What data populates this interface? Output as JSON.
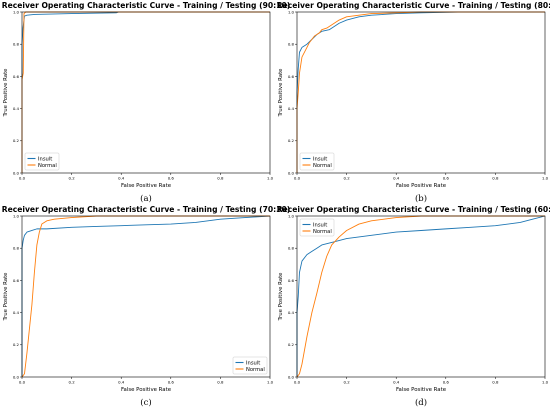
{
  "colors": {
    "insult": "#1f77b4",
    "normal": "#ff7f0e",
    "axis": "#000000",
    "legend_border": "#cccccc"
  },
  "ticks": [
    "0.0",
    "0.2",
    "0.4",
    "0.6",
    "0.8",
    "1.0"
  ],
  "chart_data": [
    {
      "type": "line",
      "sub_label": "(a)",
      "title": "Receiver Operating Characteristic Curve - Training / Testing (90:10)",
      "xlabel": "False Positive Rate",
      "ylabel": "True Positive Rate",
      "xlim": [
        0,
        1
      ],
      "ylim": [
        0,
        1
      ],
      "legend_position": "lower left",
      "series": [
        {
          "name": "Insult",
          "color": "#1f77b4",
          "points": [
            [
              0,
              0
            ],
            [
              0,
              0.8
            ],
            [
              0.004,
              0.9
            ],
            [
              0.01,
              0.975
            ],
            [
              0.02,
              0.98
            ],
            [
              0.05,
              0.985
            ],
            [
              0.2,
              0.99
            ],
            [
              0.38,
              0.995
            ],
            [
              0.39,
              1.0
            ],
            [
              1,
              1.0
            ]
          ]
        },
        {
          "name": "Normal",
          "color": "#ff7f0e",
          "points": [
            [
              0,
              0
            ],
            [
              0,
              0.58
            ],
            [
              0.005,
              0.62
            ],
            [
              0.008,
              0.99
            ],
            [
              0.015,
              1.0
            ],
            [
              1,
              1.0
            ]
          ]
        }
      ]
    },
    {
      "type": "line",
      "sub_label": "(b)",
      "title": "Receiver Operating Characteristic Curve - Training / Testing (80:20)",
      "xlabel": "False Positive Rate",
      "ylabel": "True Positive Rate",
      "xlim": [
        0,
        1
      ],
      "ylim": [
        0,
        1
      ],
      "legend_position": "lower left",
      "series": [
        {
          "name": "Insult",
          "color": "#1f77b4",
          "points": [
            [
              0,
              0
            ],
            [
              0,
              0.5
            ],
            [
              0.005,
              0.65
            ],
            [
              0.01,
              0.75
            ],
            [
              0.02,
              0.78
            ],
            [
              0.04,
              0.8
            ],
            [
              0.06,
              0.83
            ],
            [
              0.08,
              0.86
            ],
            [
              0.1,
              0.88
            ],
            [
              0.13,
              0.89
            ],
            [
              0.15,
              0.91
            ],
            [
              0.17,
              0.93
            ],
            [
              0.2,
              0.95
            ],
            [
              0.25,
              0.97
            ],
            [
              0.3,
              0.98
            ],
            [
              0.4,
              0.99
            ],
            [
              0.5,
              0.995
            ],
            [
              0.65,
              1.0
            ],
            [
              0.83,
              1.0
            ],
            [
              1,
              1.0
            ]
          ]
        },
        {
          "name": "Normal",
          "color": "#ff7f0e",
          "points": [
            [
              0,
              0
            ],
            [
              0,
              0.4
            ],
            [
              0.005,
              0.5
            ],
            [
              0.01,
              0.62
            ],
            [
              0.02,
              0.72
            ],
            [
              0.04,
              0.78
            ],
            [
              0.05,
              0.81
            ],
            [
              0.07,
              0.85
            ],
            [
              0.09,
              0.87
            ],
            [
              0.1,
              0.89
            ],
            [
              0.12,
              0.9
            ],
            [
              0.15,
              0.93
            ],
            [
              0.17,
              0.95
            ],
            [
              0.2,
              0.97
            ],
            [
              0.25,
              0.98
            ],
            [
              0.3,
              0.99
            ],
            [
              0.4,
              0.995
            ],
            [
              0.5,
              1.0
            ],
            [
              1,
              1.0
            ]
          ]
        }
      ]
    },
    {
      "type": "line",
      "sub_label": "(c)",
      "title": "Receiver Operating Characteristic Curve - Training / Testing (70:30)",
      "xlabel": "False Positive Rate",
      "ylabel": "True Positive Rate",
      "xlim": [
        0,
        1
      ],
      "ylim": [
        0,
        1
      ],
      "legend_position": "lower right",
      "series": [
        {
          "name": "Insult",
          "color": "#1f77b4",
          "points": [
            [
              0,
              0
            ],
            [
              0,
              0.8
            ],
            [
              0.005,
              0.85
            ],
            [
              0.01,
              0.88
            ],
            [
              0.02,
              0.9
            ],
            [
              0.04,
              0.91
            ],
            [
              0.06,
              0.92
            ],
            [
              0.1,
              0.92
            ],
            [
              0.2,
              0.93
            ],
            [
              0.3,
              0.935
            ],
            [
              0.4,
              0.94
            ],
            [
              0.5,
              0.945
            ],
            [
              0.6,
              0.95
            ],
            [
              0.7,
              0.96
            ],
            [
              0.8,
              0.98
            ],
            [
              0.9,
              0.99
            ],
            [
              0.95,
              0.995
            ],
            [
              1,
              1.0
            ]
          ]
        },
        {
          "name": "Normal",
          "color": "#ff7f0e",
          "points": [
            [
              0,
              0
            ],
            [
              0.01,
              0.02
            ],
            [
              0.02,
              0.15
            ],
            [
              0.03,
              0.3
            ],
            [
              0.04,
              0.45
            ],
            [
              0.05,
              0.65
            ],
            [
              0.06,
              0.82
            ],
            [
              0.07,
              0.9
            ],
            [
              0.08,
              0.95
            ],
            [
              0.1,
              0.97
            ],
            [
              0.13,
              0.98
            ],
            [
              0.2,
              0.99
            ],
            [
              0.3,
              1.0
            ],
            [
              1,
              1.0
            ]
          ]
        }
      ]
    },
    {
      "type": "line",
      "sub_label": "(d)",
      "title": "Receiver Operating Characteristic Curve - Training / Testing (60:40)",
      "xlabel": "False Positive Rate",
      "ylabel": "True Positive Rate",
      "xlim": [
        0,
        1
      ],
      "ylim": [
        0,
        1
      ],
      "legend_position": "upper left",
      "series": [
        {
          "name": "Insult",
          "color": "#1f77b4",
          "points": [
            [
              0,
              0
            ],
            [
              0,
              0.4
            ],
            [
              0.005,
              0.5
            ],
            [
              0.01,
              0.65
            ],
            [
              0.02,
              0.72
            ],
            [
              0.04,
              0.76
            ],
            [
              0.06,
              0.78
            ],
            [
              0.08,
              0.8
            ],
            [
              0.1,
              0.82
            ],
            [
              0.15,
              0.84
            ],
            [
              0.2,
              0.86
            ],
            [
              0.3,
              0.88
            ],
            [
              0.4,
              0.9
            ],
            [
              0.5,
              0.91
            ],
            [
              0.6,
              0.92
            ],
            [
              0.7,
              0.93
            ],
            [
              0.8,
              0.94
            ],
            [
              0.9,
              0.96
            ],
            [
              0.95,
              0.98
            ],
            [
              1,
              1.0
            ]
          ]
        },
        {
          "name": "Normal",
          "color": "#ff7f0e",
          "points": [
            [
              0,
              0
            ],
            [
              0.01,
              0.02
            ],
            [
              0.02,
              0.08
            ],
            [
              0.04,
              0.25
            ],
            [
              0.06,
              0.4
            ],
            [
              0.08,
              0.52
            ],
            [
              0.1,
              0.65
            ],
            [
              0.12,
              0.75
            ],
            [
              0.14,
              0.82
            ],
            [
              0.17,
              0.87
            ],
            [
              0.2,
              0.91
            ],
            [
              0.25,
              0.95
            ],
            [
              0.3,
              0.97
            ],
            [
              0.4,
              0.99
            ],
            [
              0.5,
              1.0
            ],
            [
              1,
              1.0
            ]
          ]
        }
      ]
    }
  ]
}
